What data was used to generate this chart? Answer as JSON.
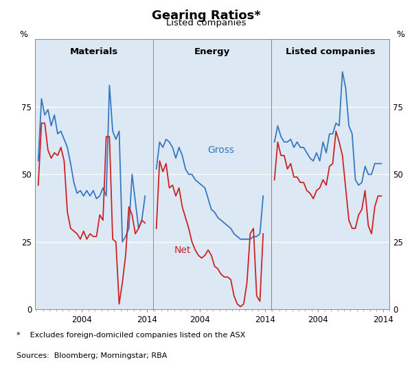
{
  "title": "Gearing Ratios*",
  "subtitle": "Listed companies",
  "footnote": "*    Excludes foreign-domiciled companies listed on the ASX",
  "sources": "Sources:  Bloomberg; Morningstar; RBA",
  "panel_titles": [
    "Materials",
    "Energy",
    "Listed companies"
  ],
  "ylabel_left": "%",
  "ylabel_right": "%",
  "yticks": [
    0,
    25,
    50,
    75
  ],
  "ylim": [
    0,
    100
  ],
  "bg_color": "#dce9f5",
  "blue_color": "#3777c0",
  "red_color": "#cc2222",
  "gross_label": "Gross",
  "net_label": "Net",
  "mat_gross_x": [
    1997.25,
    1997.75,
    1998.25,
    1998.75,
    1999.25,
    1999.75,
    2000.25,
    2000.75,
    2001.25,
    2001.75,
    2002.25,
    2002.75,
    2003.25,
    2003.75,
    2004.25,
    2004.75,
    2005.25,
    2005.75,
    2006.25,
    2006.75,
    2007.25,
    2007.75,
    2008.25,
    2008.75,
    2009.25,
    2009.75,
    2010.25,
    2010.75,
    2011.25,
    2011.75,
    2012.25,
    2012.75,
    2013.25,
    2013.75
  ],
  "mat_gross_y": [
    55,
    78,
    72,
    74,
    68,
    72,
    65,
    66,
    63,
    60,
    54,
    47,
    43,
    44,
    42,
    44,
    42,
    44,
    41,
    42,
    45,
    42,
    83,
    66,
    63,
    66,
    25,
    27,
    30,
    50,
    40,
    30,
    33,
    42
  ],
  "mat_net_x": [
    1997.25,
    1997.75,
    1998.25,
    1998.75,
    1999.25,
    1999.75,
    2000.25,
    2000.75,
    2001.25,
    2001.75,
    2002.25,
    2002.75,
    2003.25,
    2003.75,
    2004.25,
    2004.75,
    2005.25,
    2005.75,
    2006.25,
    2006.75,
    2007.25,
    2007.75,
    2008.25,
    2008.75,
    2009.25,
    2009.75,
    2010.25,
    2010.75,
    2011.25,
    2011.75,
    2012.25,
    2012.75,
    2013.25,
    2013.75
  ],
  "mat_net_y": [
    46,
    69,
    69,
    59,
    56,
    58,
    57,
    60,
    55,
    36,
    30,
    29,
    28,
    26,
    29,
    26,
    28,
    27,
    27,
    35,
    33,
    64,
    64,
    26,
    25,
    2,
    10,
    20,
    38,
    35,
    28,
    30,
    33,
    32
  ],
  "ene_gross_x": [
    1997.25,
    1997.75,
    1998.25,
    1998.75,
    1999.25,
    1999.75,
    2000.25,
    2000.75,
    2001.25,
    2001.75,
    2002.25,
    2002.75,
    2003.25,
    2003.75,
    2004.25,
    2004.75,
    2005.25,
    2005.75,
    2006.25,
    2006.75,
    2007.25,
    2007.75,
    2008.25,
    2008.75,
    2009.25,
    2009.75,
    2010.25,
    2010.75,
    2011.25,
    2011.75,
    2012.25,
    2012.75,
    2013.25,
    2013.75
  ],
  "ene_gross_y": [
    52,
    62,
    60,
    63,
    62,
    60,
    56,
    60,
    57,
    52,
    50,
    50,
    48,
    47,
    46,
    45,
    41,
    37,
    36,
    34,
    33,
    32,
    31,
    30,
    28,
    27,
    26,
    26,
    26,
    26,
    27,
    27,
    28,
    42
  ],
  "ene_net_x": [
    1997.25,
    1997.75,
    1998.25,
    1998.75,
    1999.25,
    1999.75,
    2000.25,
    2000.75,
    2001.25,
    2001.75,
    2002.25,
    2002.75,
    2003.25,
    2003.75,
    2004.25,
    2004.75,
    2005.25,
    2005.75,
    2006.25,
    2006.75,
    2007.25,
    2007.75,
    2008.25,
    2008.75,
    2009.25,
    2009.75,
    2010.25,
    2010.75,
    2011.25,
    2011.75,
    2012.25,
    2012.75,
    2013.25,
    2013.75
  ],
  "ene_net_y": [
    30,
    55,
    51,
    54,
    45,
    46,
    42,
    45,
    38,
    34,
    30,
    25,
    22,
    20,
    19,
    20,
    22,
    20,
    16,
    15,
    13,
    12,
    12,
    11,
    5,
    2,
    1,
    2,
    10,
    28,
    30,
    5,
    3,
    28
  ],
  "lst_gross_x": [
    1997.25,
    1997.75,
    1998.25,
    1998.75,
    1999.25,
    1999.75,
    2000.25,
    2000.75,
    2001.25,
    2001.75,
    2002.25,
    2002.75,
    2003.25,
    2003.75,
    2004.25,
    2004.75,
    2005.25,
    2005.75,
    2006.25,
    2006.75,
    2007.25,
    2007.75,
    2008.25,
    2008.75,
    2009.25,
    2009.75,
    2010.25,
    2010.75,
    2011.25,
    2011.75,
    2012.25,
    2012.75,
    2013.25,
    2013.75
  ],
  "lst_gross_y": [
    62,
    68,
    64,
    62,
    62,
    63,
    60,
    62,
    60,
    60,
    58,
    56,
    55,
    58,
    55,
    62,
    58,
    65,
    65,
    69,
    68,
    88,
    82,
    68,
    65,
    48,
    46,
    47,
    53,
    50,
    50,
    54,
    54,
    54
  ],
  "lst_net_x": [
    1997.25,
    1997.75,
    1998.25,
    1998.75,
    1999.25,
    1999.75,
    2000.25,
    2000.75,
    2001.25,
    2001.75,
    2002.25,
    2002.75,
    2003.25,
    2003.75,
    2004.25,
    2004.75,
    2005.25,
    2005.75,
    2006.25,
    2006.75,
    2007.25,
    2007.75,
    2008.25,
    2008.75,
    2009.25,
    2009.75,
    2010.25,
    2010.75,
    2011.25,
    2011.75,
    2012.25,
    2012.75,
    2013.25,
    2013.75
  ],
  "lst_net_y": [
    48,
    62,
    57,
    57,
    52,
    54,
    49,
    49,
    47,
    47,
    44,
    43,
    41,
    44,
    45,
    48,
    46,
    53,
    54,
    66,
    62,
    57,
    45,
    33,
    30,
    30,
    35,
    37,
    44,
    31,
    28,
    38,
    42,
    42
  ],
  "xmin": 1996.75,
  "xmax": 2015.0,
  "xticks": [
    2004,
    2014
  ]
}
